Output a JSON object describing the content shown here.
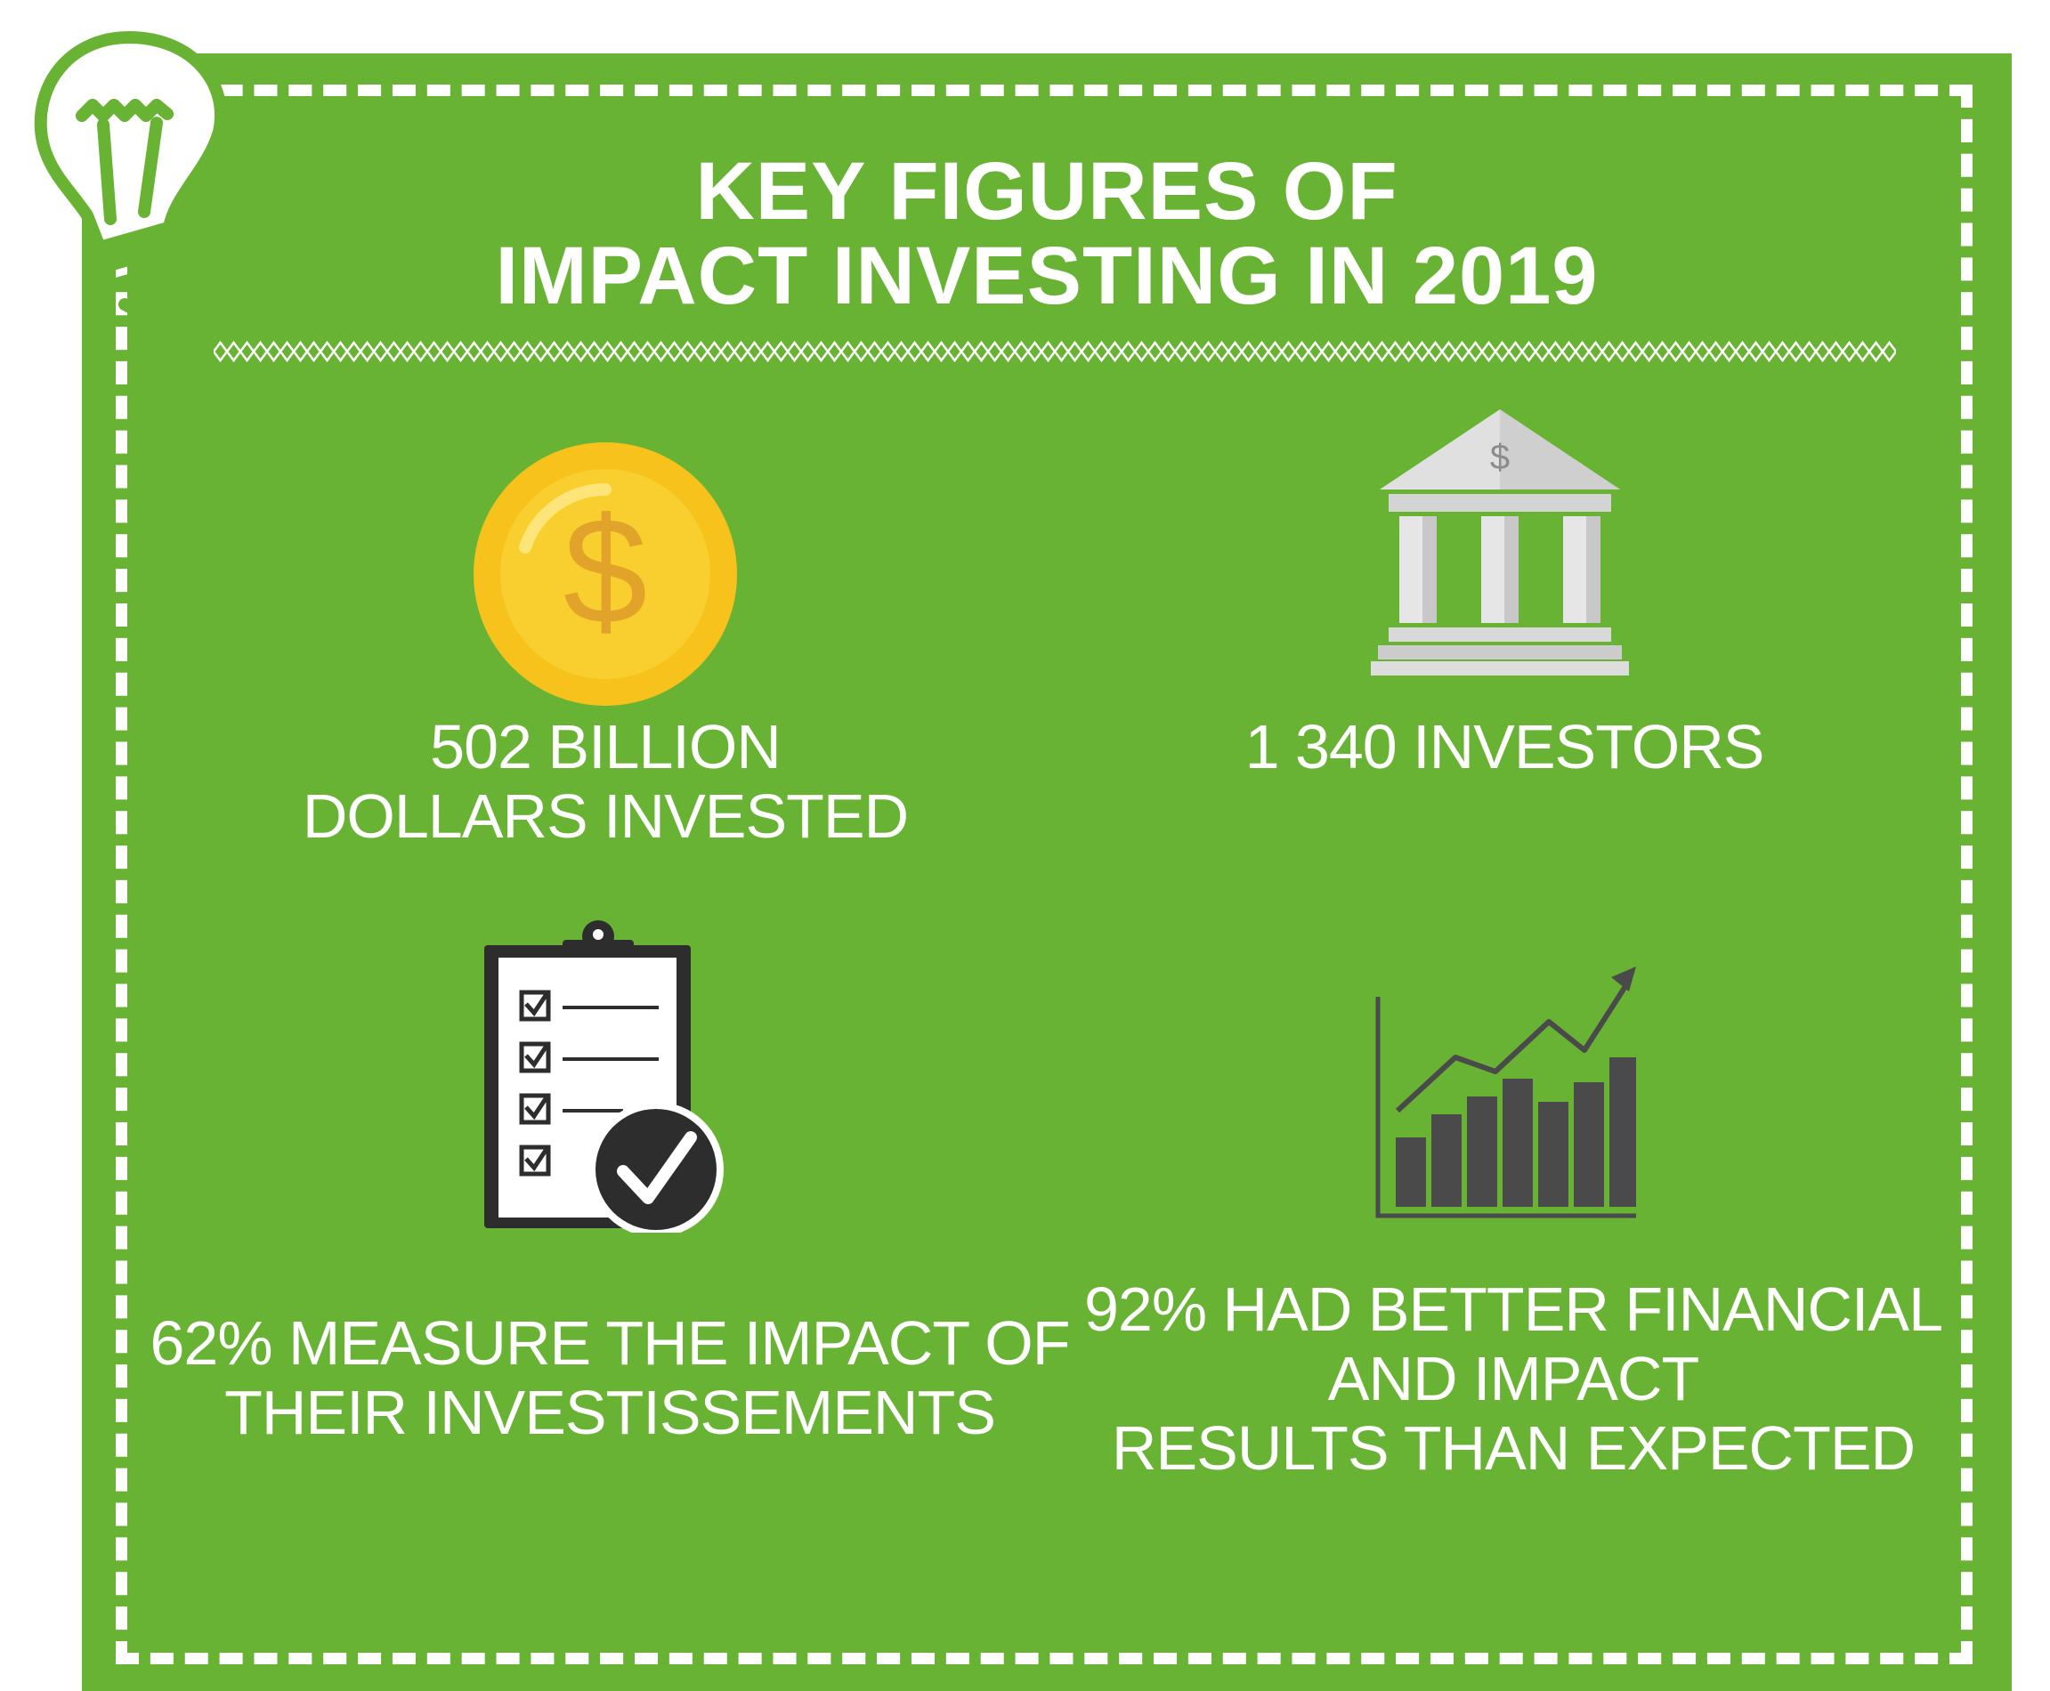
{
  "colors": {
    "background": "#69b334",
    "text": "#ffffff",
    "coin": "#f6c21b",
    "coin_symbol": "#e1a32a",
    "dark_icon": "#3a3a3a",
    "bank": "#d6d6d6"
  },
  "title": {
    "line1": "KEY FIGURES OF",
    "line2": "IMPACT INVESTING IN 2019"
  },
  "icons": {
    "bulb": "light-bulb-icon",
    "coin": "dollar-coin-icon",
    "bank": "bank-building-icon",
    "coin_symbol": "$",
    "bank_symbol": "$",
    "clipboard": "checklist-clipboard-icon",
    "chart": "growth-bar-chart-icon"
  },
  "stats": {
    "invested": {
      "line1": "502 BILLION",
      "line2": "DOLLARS INVESTED"
    },
    "investors": {
      "line1": "1 340 INVESTORS"
    },
    "measure": {
      "line1": "62% MEASURE THE IMPACT OF",
      "line2": "THEIR INVESTISSEMENTS"
    },
    "results": {
      "line1": "92% HAD BETTER FINANCIAL",
      "line2": "AND IMPACT",
      "line3": "RESULTS THAN EXPECTED"
    }
  }
}
